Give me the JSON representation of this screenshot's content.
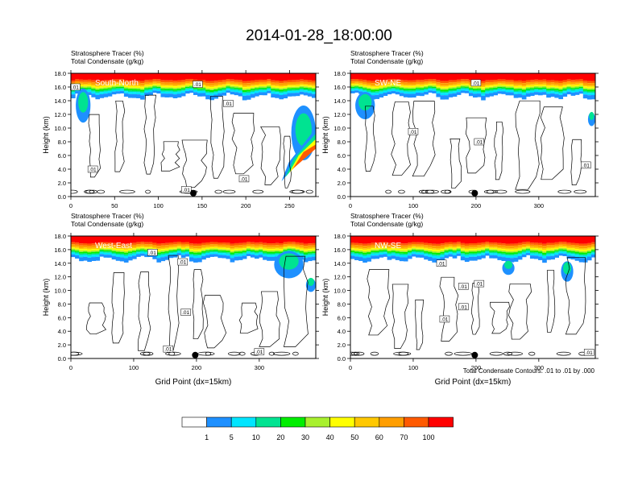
{
  "title": "2014-01-28_18:00:00",
  "chart_data": [
    {
      "type": "heatmap",
      "panel_label": "South-North",
      "header_line1": "Stratosphere Tracer   (%)",
      "header_line2": "Total Condensate   (g/kg)",
      "ylabel": "Height (km)",
      "xlabel": "",
      "xlim": [
        0,
        280
      ],
      "ylim": [
        0,
        18
      ],
      "xticks": [
        "0",
        "50",
        "100",
        "150",
        "200",
        "250"
      ],
      "xtick_values": [
        0,
        50,
        100,
        150,
        200,
        250
      ],
      "yticks": [
        "0.0",
        "2.0",
        "4.0",
        "6.0",
        "8.0",
        "10.0",
        "12.0",
        "14.0",
        "16.0",
        "18.0"
      ],
      "marker_x": 140,
      "contour_labels": [
        {
          "text": ".01",
          "x": 5,
          "y": 16
        },
        {
          "text": ".01",
          "x": 145,
          "y": 16.4
        },
        {
          "text": ".01",
          "x": 180,
          "y": 13.6
        },
        {
          "text": ".01",
          "x": 25,
          "y": 4.0
        },
        {
          "text": ".01",
          "x": 132,
          "y": 1.0
        },
        {
          "text": ".01",
          "x": 198,
          "y": 2.6
        }
      ]
    },
    {
      "type": "heatmap",
      "panel_label": "SW-NE",
      "header_line1": "Stratosphere Tracer   (%)",
      "header_line2": "Total Condensate   (g/kg)",
      "ylabel": "Height (km)",
      "xlabel": "",
      "xlim": [
        0,
        390
      ],
      "ylim": [
        0,
        18
      ],
      "xticks": [
        "0",
        "100",
        "200",
        "300"
      ],
      "xtick_values": [
        0,
        100,
        200,
        300
      ],
      "yticks": [
        "0.0",
        "2.0",
        "4.0",
        "6.0",
        "8.0",
        "10.0",
        "12.0",
        "14.0",
        "16.0",
        "18.0"
      ],
      "marker_x": 198,
      "contour_labels": [
        {
          "text": ".01",
          "x": 200,
          "y": 16.6
        },
        {
          "text": ".01",
          "x": 100,
          "y": 9.5
        },
        {
          "text": ".01",
          "x": 205,
          "y": 8.0
        },
        {
          "text": ".01",
          "x": 375,
          "y": 4.6
        }
      ]
    },
    {
      "type": "heatmap",
      "panel_label": "West-East",
      "header_line1": "Stratosphere Tracer   (%)",
      "header_line2": "Total Condensate   (g/kg)",
      "ylabel": "Height (km)",
      "xlabel": "Grid Point (dx=15km)",
      "xlim": [
        0,
        390
      ],
      "ylim": [
        0,
        18
      ],
      "xticks": [
        "0",
        "100",
        "200",
        "300"
      ],
      "xtick_values": [
        0,
        100,
        200,
        300
      ],
      "yticks": [
        "0.0",
        "2.0",
        "4.0",
        "6.0",
        "8.0",
        "10.0",
        "12.0",
        "14.0",
        "16.0",
        "18.0"
      ],
      "marker_x": 198,
      "contour_labels": [
        {
          "text": ".01",
          "x": 130,
          "y": 15.6
        },
        {
          "text": ".01",
          "x": 178,
          "y": 14.2
        },
        {
          "text": ".01",
          "x": 183,
          "y": 6.8
        },
        {
          "text": ".01",
          "x": 155,
          "y": 1.4
        },
        {
          "text": ".01",
          "x": 300,
          "y": 1.0
        }
      ]
    },
    {
      "type": "heatmap",
      "panel_label": "NW-SE",
      "header_line1": "Stratosphere Tracer   (%)",
      "header_line2": "Total Condensate   (g/kg)",
      "ylabel": "Height (km)",
      "xlabel": "Grid Point (dx=15km)",
      "xlim": [
        0,
        390
      ],
      "ylim": [
        0,
        18
      ],
      "xticks": [
        "0",
        "100",
        "200",
        "300"
      ],
      "xtick_values": [
        0,
        100,
        200,
        300
      ],
      "yticks": [
        "0.0",
        "2.0",
        "4.0",
        "6.0",
        "8.0",
        "10.0",
        "12.0",
        "14.0",
        "16.0",
        "18.0"
      ],
      "marker_x": 198,
      "contour_labels": [
        {
          "text": ".01",
          "x": 145,
          "y": 14.0
        },
        {
          "text": ".01",
          "x": 180,
          "y": 10.6
        },
        {
          "text": ".01",
          "x": 205,
          "y": 11.0
        },
        {
          "text": ".01",
          "x": 180,
          "y": 7.6
        },
        {
          "text": ".01",
          "x": 150,
          "y": 5.8
        },
        {
          "text": ".01",
          "x": 380,
          "y": 0.9
        }
      ]
    }
  ],
  "contour_info": "Total Condensate Contours: .01 to .01 by .000",
  "colorbar": {
    "colors": [
      "#ffffff",
      "#1e90ff",
      "#00e5ff",
      "#00e391",
      "#00ee00",
      "#a8f02e",
      "#ffff00",
      "#ffc800",
      "#ff9e00",
      "#ff5a00",
      "#ff0000"
    ],
    "labels": [
      "1",
      "5",
      "10",
      "20",
      "30",
      "40",
      "50",
      "60",
      "70",
      "100"
    ]
  }
}
